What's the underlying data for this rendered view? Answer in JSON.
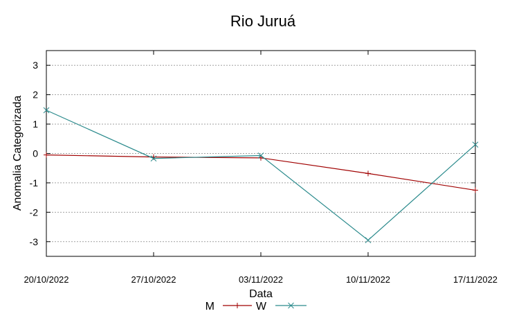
{
  "chart_data": {
    "type": "line",
    "title": "Rio Juruá",
    "xlabel": "Data",
    "ylabel": "Anomalia Categorizada",
    "categories": [
      "20/10/2022",
      "27/10/2022",
      "03/11/2022",
      "10/11/2022",
      "17/11/2022"
    ],
    "yticks": [
      "3",
      "2",
      "1",
      "0",
      "-1",
      "-2",
      "-3"
    ],
    "ylim": [
      -3.5,
      3.5
    ],
    "grid": true,
    "legend_position": "bottom",
    "series": [
      {
        "name": "M",
        "values": [
          -0.05,
          -0.12,
          -0.15,
          -0.68,
          -1.25
        ],
        "color": "#a00000",
        "marker": "+"
      },
      {
        "name": "W",
        "values": [
          1.47,
          -0.17,
          -0.07,
          -2.95,
          0.3
        ],
        "color": "#2a8a8c",
        "marker": "x"
      }
    ]
  }
}
